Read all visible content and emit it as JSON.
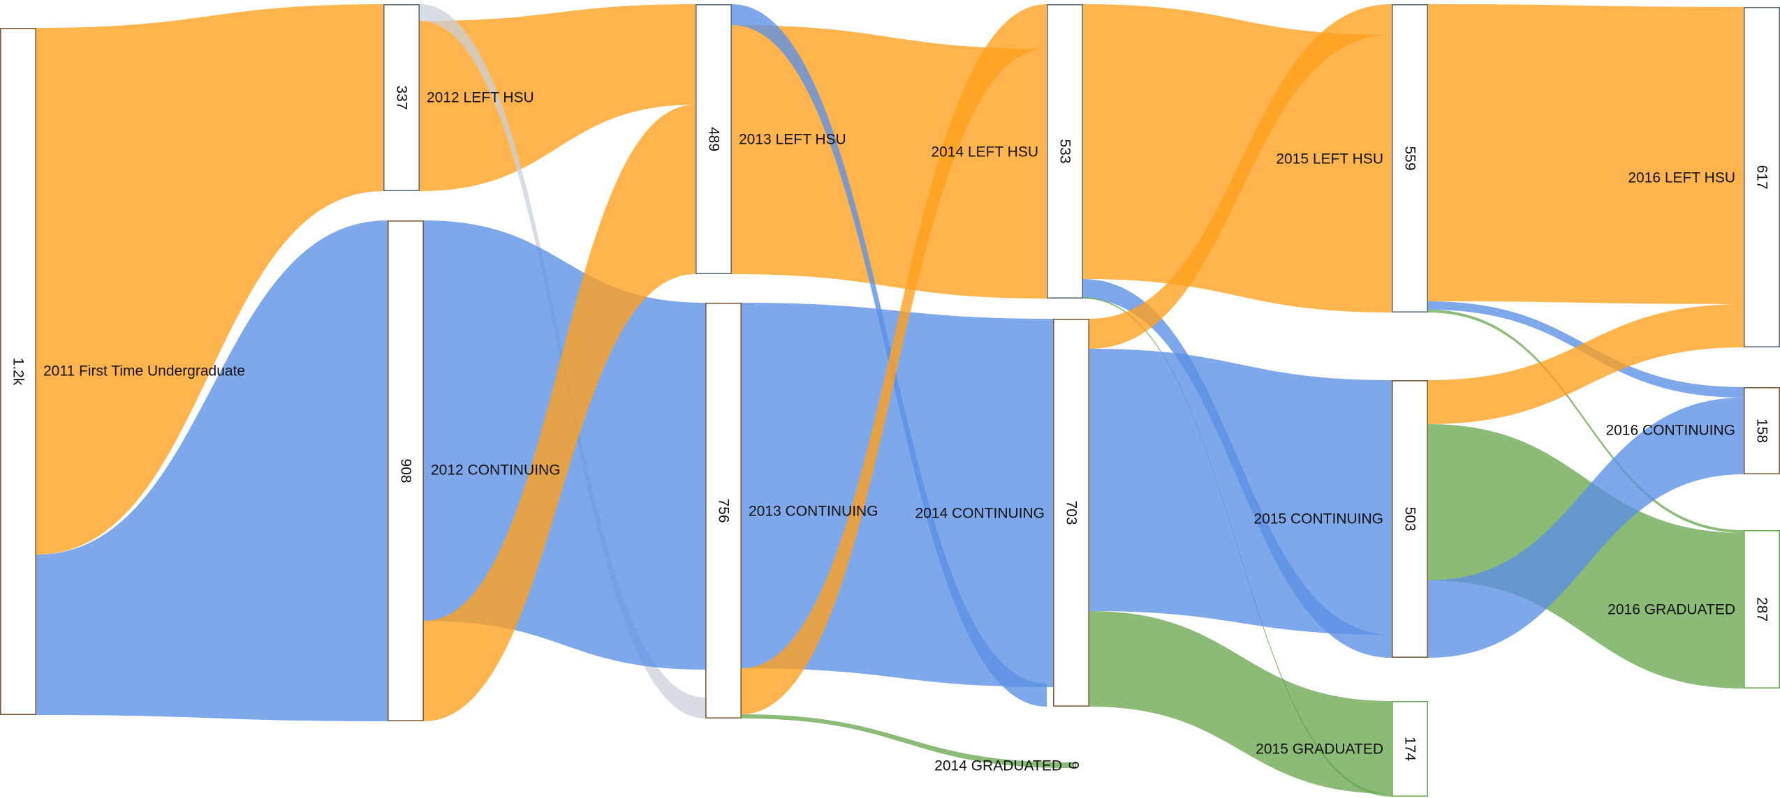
{
  "colors": {
    "continuing": "#5b8fe6",
    "left": "#ff9f1c",
    "graduated": "#6aa84f",
    "graduated_border": "#6aa84f",
    "continuing_border": "#000000",
    "left_border": "#000000"
  },
  "nodes": [
    {
      "id": "n2011",
      "label": "2011 First Time Undergraduate",
      "value": "1.2k"
    },
    {
      "id": "n2012L",
      "label": "2012 LEFT HSU",
      "value": "337"
    },
    {
      "id": "n2012C",
      "label": "2012 CONTINUING",
      "value": "908"
    },
    {
      "id": "n2013L",
      "label": "2013 LEFT HSU",
      "value": "489"
    },
    {
      "id": "n2013C",
      "label": "2013 CONTINUING",
      "value": "756"
    },
    {
      "id": "n2014L",
      "label": "2014 LEFT HSU",
      "value": "533"
    },
    {
      "id": "n2014C",
      "label": "2014 CONTINUING",
      "value": "703"
    },
    {
      "id": "n2014G",
      "label": "2014 GRADUATED",
      "value": "9"
    },
    {
      "id": "n2015L",
      "label": "2015 LEFT HSU",
      "value": "559"
    },
    {
      "id": "n2015C",
      "label": "2015 CONTINUING",
      "value": "503"
    },
    {
      "id": "n2015G",
      "label": "2015 GRADUATED",
      "value": "174"
    },
    {
      "id": "n2016L",
      "label": "2016 LEFT HSU",
      "value": "617"
    },
    {
      "id": "n2016C",
      "label": "2016 CONTINUING",
      "value": "158"
    },
    {
      "id": "n2016G",
      "label": "2016 GRADUATED",
      "value": "287"
    }
  ]
}
